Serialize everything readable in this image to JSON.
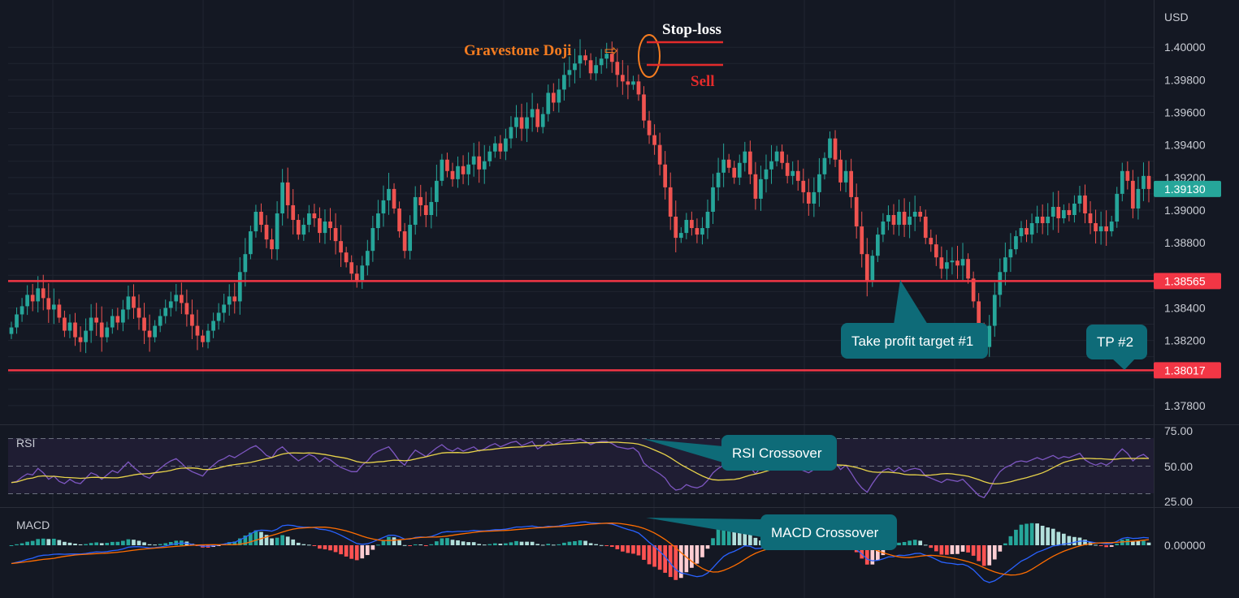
{
  "colors": {
    "background": "#141823",
    "grid": "#1f2430",
    "up": "#26a69a",
    "down": "#ef5350",
    "level_line": "#f23645",
    "current_price_badge": "#26a69a",
    "callout": "#0e6b78",
    "rsi_line": "#7e57c2",
    "rsi_signal": "#e8d34a",
    "macd_line": "#2962ff",
    "macd_signal": "#ff6d00",
    "doji_label": "#f57c20",
    "sell_label": "#e32b2b"
  },
  "price_axis": {
    "currency": "USD",
    "ticks": [
      "1.40000",
      "1.39800",
      "1.39600",
      "1.39400",
      "1.39200",
      "1.39000",
      "1.38800",
      "1.38400",
      "1.38200",
      "1.37800"
    ]
  },
  "levels": {
    "current_price": "1.39130",
    "resistance": "1.38565",
    "support": "1.38017"
  },
  "annotations": {
    "gravestone_doji": "Gravestone Doji",
    "doji_arrow": "⇨",
    "stop_loss": "Stop-loss",
    "sell": "Sell",
    "tp1": "Take profit target #1",
    "tp2": "TP #2",
    "rsi_crossover": "RSI Crossover",
    "macd_crossover": "MACD Crossover"
  },
  "rsi_pane": {
    "label": "RSI",
    "ticks": [
      "75.00",
      "50.00",
      "25.00"
    ]
  },
  "macd_pane": {
    "label": "MACD",
    "ticks": [
      "0.00000"
    ]
  },
  "chart_data": [
    {
      "type": "candlestick",
      "title": "",
      "ylabel": "USD",
      "ylim": [
        1.377,
        1.4025
      ],
      "levels": [
        1.38565,
        1.38017
      ],
      "current_price": 1.3913,
      "close": [
        1.3828,
        1.3836,
        1.3841,
        1.3848,
        1.3844,
        1.3852,
        1.3846,
        1.3839,
        1.3842,
        1.3834,
        1.3826,
        1.3831,
        1.3822,
        1.3819,
        1.3826,
        1.3834,
        1.3831,
        1.3822,
        1.3828,
        1.3835,
        1.3831,
        1.3839,
        1.3847,
        1.384,
        1.3834,
        1.3826,
        1.3822,
        1.3829,
        1.3835,
        1.384,
        1.3844,
        1.3848,
        1.3843,
        1.3836,
        1.3829,
        1.3823,
        1.3819,
        1.3826,
        1.3832,
        1.3837,
        1.3842,
        1.3847,
        1.3844,
        1.3862,
        1.3873,
        1.3887,
        1.3899,
        1.3891,
        1.3882,
        1.3876,
        1.3898,
        1.3917,
        1.3903,
        1.3894,
        1.3885,
        1.3891,
        1.3898,
        1.3895,
        1.3886,
        1.3893,
        1.3889,
        1.3881,
        1.3874,
        1.3868,
        1.3861,
        1.3857,
        1.3866,
        1.3875,
        1.3889,
        1.3898,
        1.3906,
        1.3913,
        1.3901,
        1.3887,
        1.3875,
        1.3891,
        1.3908,
        1.3903,
        1.3897,
        1.3905,
        1.3918,
        1.3931,
        1.3924,
        1.3919,
        1.3927,
        1.3922,
        1.3928,
        1.3933,
        1.3925,
        1.393,
        1.3936,
        1.3941,
        1.3936,
        1.3944,
        1.3951,
        1.3957,
        1.395,
        1.3957,
        1.3962,
        1.3951,
        1.3959,
        1.3972,
        1.3966,
        1.3974,
        1.3983,
        1.3986,
        1.399,
        1.3995,
        1.3992,
        1.3984,
        1.3989,
        1.3993,
        1.3996,
        1.3991,
        1.3983,
        1.3979,
        1.3977,
        1.3979,
        1.3971,
        1.3955,
        1.3946,
        1.394,
        1.3928,
        1.3914,
        1.3896,
        1.3883,
        1.3886,
        1.3894,
        1.3889,
        1.3885,
        1.3889,
        1.3899,
        1.3914,
        1.3923,
        1.3931,
        1.3926,
        1.392,
        1.3929,
        1.3936,
        1.3922,
        1.3907,
        1.3919,
        1.3925,
        1.393,
        1.3936,
        1.3929,
        1.3921,
        1.3924,
        1.3918,
        1.3911,
        1.3904,
        1.3911,
        1.3922,
        1.3932,
        1.3944,
        1.3931,
        1.3917,
        1.3924,
        1.3908,
        1.389,
        1.3873,
        1.3856,
        1.3872,
        1.3885,
        1.3893,
        1.3897,
        1.3891,
        1.3899,
        1.3891,
        1.3896,
        1.3899,
        1.3896,
        1.3883,
        1.3879,
        1.3871,
        1.3864,
        1.3868,
        1.3869,
        1.3866,
        1.387,
        1.3858,
        1.3844,
        1.3825,
        1.3816,
        1.3829,
        1.3848,
        1.3862,
        1.3871,
        1.3876,
        1.3884,
        1.3889,
        1.3885,
        1.3892,
        1.3896,
        1.3892,
        1.3896,
        1.3902,
        1.3895,
        1.39,
        1.3897,
        1.3904,
        1.3909,
        1.3898,
        1.3892,
        1.3887,
        1.389,
        1.3887,
        1.3893,
        1.391,
        1.3924,
        1.3918,
        1.3901,
        1.3913,
        1.3921,
        1.3913
      ]
    },
    {
      "type": "line",
      "title": "RSI",
      "ylim": [
        10,
        85
      ],
      "ticks": [
        75,
        50,
        25
      ],
      "series": [
        {
          "values": [
            35,
            36,
            40,
            43,
            42,
            48,
            44,
            38,
            41,
            36,
            34,
            38,
            35,
            34,
            39,
            44,
            42,
            38,
            42,
            46,
            44,
            49,
            54,
            49,
            45,
            41,
            39,
            44,
            48,
            52,
            55,
            57,
            53,
            48,
            45,
            43,
            41,
            47,
            51,
            55,
            57,
            60,
            58,
            61,
            64,
            67,
            69,
            65,
            60,
            58,
            65,
            68,
            63,
            59,
            55,
            58,
            61,
            59,
            54,
            58,
            56,
            52,
            49,
            47,
            45,
            45,
            51,
            55,
            61,
            64,
            66,
            68,
            62,
            55,
            51,
            59,
            65,
            62,
            59,
            63,
            67,
            70,
            66,
            64,
            67,
            64,
            66,
            68,
            64,
            66,
            69,
            71,
            68,
            70,
            72,
            73,
            69,
            71,
            73,
            66,
            69,
            73,
            70,
            72,
            74,
            74,
            74,
            75,
            73,
            70,
            72,
            73,
            73,
            71,
            68,
            67,
            66,
            67,
            63,
            53,
            49,
            46,
            43,
            39,
            32,
            28,
            29,
            33,
            31,
            30,
            32,
            37,
            44,
            48,
            51,
            49,
            47,
            51,
            54,
            49,
            43,
            49,
            52,
            54,
            56,
            52,
            49,
            50,
            48,
            46,
            44,
            47,
            52,
            56,
            60,
            54,
            47,
            51,
            44,
            36,
            30,
            26,
            34,
            41,
            46,
            48,
            45,
            49,
            45,
            47,
            48,
            47,
            41,
            39,
            37,
            35,
            38,
            37,
            36,
            38,
            33,
            28,
            23,
            21,
            28,
            38,
            45,
            49,
            51,
            54,
            55,
            54,
            56,
            58,
            56,
            58,
            60,
            57,
            59,
            58,
            60,
            62,
            56,
            53,
            51,
            53,
            51,
            54,
            61,
            66,
            62,
            55,
            59,
            61,
            57
          ]
        }
      ]
    },
    {
      "type": "line",
      "title": "MACD",
      "series": [
        {
          "values": [
            -0.00075,
            -0.0007,
            -0.00065,
            -0.00058,
            -0.00053,
            -0.00045,
            -0.00041,
            -0.0004,
            -0.00037,
            -0.00036,
            -0.00037,
            -0.00036,
            -0.00036,
            -0.00036,
            -0.00034,
            -0.0003,
            -0.00027,
            -0.00028,
            -0.00026,
            -0.00022,
            -0.0002,
            -0.00015,
            -8e-05,
            -6e-05,
            -6e-05,
            -8e-05,
            -0.00011,
            -0.0001,
            -7e-05,
            -3e-05,
            2e-05,
            7e-05,
            9e-05,
            8e-05,
            4e-05,
            0.0,
            -4e-05,
            -4e-05,
            -2e-05,
            1e-05,
            5e-05,
            0.0001,
            0.00012,
            0.00022,
            0.00033,
            0.00046,
            0.00059,
            0.00062,
            0.00061,
            0.00058,
            0.00066,
            0.0008,
            0.00083,
            0.00081,
            0.00076,
            0.00074,
            0.00074,
            0.00072,
            0.00066,
            0.00064,
            0.00059,
            0.00051,
            0.00041,
            0.0003,
            0.00018,
            7e-05,
            4e-05,
            6e-05,
            0.00014,
            0.00023,
            0.00032,
            0.00041,
            0.00041,
            0.00035,
            0.00025,
            0.00025,
            0.00032,
            0.00034,
            0.00033,
            0.00036,
            0.00044,
            0.00053,
            0.00056,
            0.00055,
            0.00057,
            0.00057,
            0.00058,
            0.00061,
            0.00059,
            0.00059,
            0.00061,
            0.00064,
            0.00064,
            0.00066,
            0.0007,
            0.00075,
            0.00075,
            0.00077,
            0.00079,
            0.00075,
            0.00074,
            0.00078,
            0.00077,
            0.00079,
            0.00084,
            0.00088,
            0.00091,
            0.00095,
            0.00096,
            0.00092,
            0.00091,
            0.0009,
            0.0009,
            0.00087,
            0.0008,
            0.00072,
            0.00065,
            0.00059,
            0.0005,
            0.00032,
            0.00012,
            -5e-05,
            -0.00025,
            -0.00047,
            -0.00074,
            -0.001,
            -0.00114,
            -0.00118,
            -0.00124,
            -0.00129,
            -0.00126,
            -0.00114,
            -0.00092,
            -0.00068,
            -0.00046,
            -0.00033,
            -0.00025,
            -0.00014,
            -2e-05,
            -4e-05,
            -0.00014,
            -0.00012,
            -6e-05,
            0.0,
            7e-05,
            8e-05,
            5e-05,
            4e-05,
            1e-05,
            -4e-05,
            -0.0001,
            -0.00011,
            -7e-05,
            1e-05,
            0.00013,
            0.00014,
            9e-05,
            8e-05,
            -2e-05,
            -0.00017,
            -0.00036,
            -0.00057,
            -0.00064,
            -0.00062,
            -0.00056,
            -0.00048,
            -0.00047,
            -0.00041,
            -0.00042,
            -0.00039,
            -0.00034,
            -0.00033,
            -0.00041,
            -0.00048,
            -0.00058,
            -0.00069,
            -0.00073,
            -0.00075,
            -0.00079,
            -0.00078,
            -0.00086,
            -0.00101,
            -0.00123,
            -0.00145,
            -0.00153,
            -0.00146,
            -0.00132,
            -0.00115,
            -0.00099,
            -0.00082,
            -0.00065,
            -0.00055,
            -0.00042,
            -0.00029,
            -0.00021,
            -0.00012,
            -3e-05,
            0.0,
            5e-05,
            7e-05,
            0.00012,
            0.00017,
            0.00017,
            0.00014,
            0.0001,
            9e-05,
            6e-05,
            7e-05,
            0.00016,
            0.00028,
            0.00032,
            0.00028,
            0.00029,
            0.00032,
            0.0003
          ]
        }
      ]
    }
  ]
}
